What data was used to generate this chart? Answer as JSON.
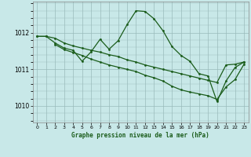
{
  "background_color": "#c8e8e8",
  "grid_color": "#99bbbb",
  "line_color": "#1a5c1a",
  "xlim": [
    -0.5,
    23.5
  ],
  "ylim": [
    1009.55,
    1012.85
  ],
  "x_ticks": [
    0,
    1,
    2,
    3,
    4,
    5,
    6,
    7,
    8,
    9,
    10,
    11,
    12,
    13,
    14,
    15,
    16,
    17,
    18,
    19,
    20,
    21,
    22,
    23
  ],
  "y_ticks": [
    1010,
    1011,
    1012
  ],
  "xlabel": "Graphe pression niveau de la mer (hPa)",
  "line1_x": [
    0,
    1,
    2,
    3,
    4,
    5,
    6,
    7,
    8,
    9,
    10,
    11,
    12,
    13,
    14,
    15,
    16,
    17,
    18,
    19,
    20,
    21,
    22,
    23
  ],
  "line1_y": [
    1011.9,
    1011.9,
    1011.85,
    1011.72,
    1011.64,
    1011.58,
    1011.52,
    1011.47,
    1011.4,
    1011.35,
    1011.26,
    1011.2,
    1011.12,
    1011.06,
    1011.0,
    1010.94,
    1010.88,
    1010.82,
    1010.76,
    1010.7,
    1010.64,
    1011.12,
    1011.14,
    1011.2
  ],
  "line2_x": [
    0,
    1,
    2,
    3,
    4,
    5,
    6,
    7,
    8,
    9,
    10,
    11,
    12,
    13,
    14,
    15,
    16,
    17,
    18,
    19,
    20,
    21,
    22,
    23
  ],
  "line2_y": [
    1011.9,
    1011.9,
    1011.72,
    1011.58,
    1011.52,
    1011.22,
    1011.48,
    1011.82,
    1011.55,
    1011.78,
    1012.22,
    1012.6,
    1012.58,
    1012.38,
    1012.05,
    1011.62,
    1011.38,
    1011.22,
    1010.88,
    1010.82,
    1010.12,
    1010.68,
    1011.05,
    1011.2
  ],
  "line3_x": [
    2,
    3,
    4,
    5,
    6,
    7,
    8,
    9,
    10,
    11,
    12,
    13,
    14,
    15,
    16,
    17,
    18,
    19,
    20,
    21,
    22,
    23
  ],
  "line3_y": [
    1011.68,
    1011.54,
    1011.46,
    1011.38,
    1011.28,
    1011.2,
    1011.12,
    1011.06,
    1011.0,
    1010.94,
    1010.84,
    1010.77,
    1010.68,
    1010.54,
    1010.44,
    1010.38,
    1010.33,
    1010.28,
    1010.18,
    1010.52,
    1010.72,
    1011.14
  ]
}
